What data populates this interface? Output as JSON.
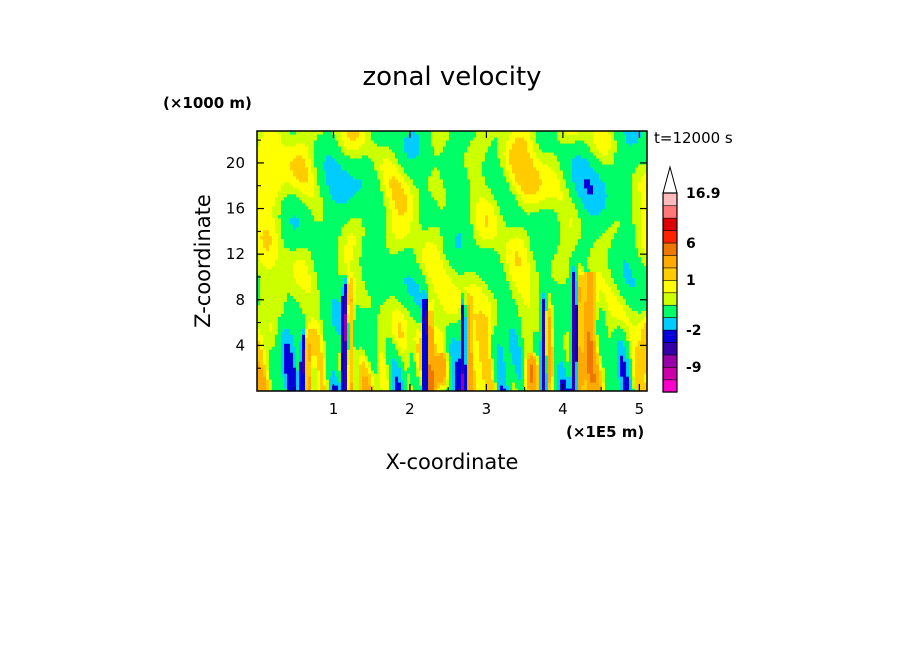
{
  "chart_data": {
    "type": "heatmap",
    "title": "zonal velocity",
    "xlabel": "X-coordinate",
    "ylabel": "Z-coordinate",
    "x_unit_label": "(×1E5 m)",
    "y_unit_label": "(×1000 m)",
    "time_label": "t=12000 s",
    "xlim": [
      0,
      5.1
    ],
    "ylim": [
      0,
      22.8
    ],
    "x_ticks": [
      1,
      2,
      3,
      4,
      5
    ],
    "y_ticks": [
      4,
      8,
      12,
      16,
      20
    ],
    "colorbar": {
      "min": -14,
      "max": 16.9,
      "extend": "max",
      "labels": [
        {
          "value": 16.9,
          "text": "16.9"
        },
        {
          "value": 6,
          "text": "6"
        },
        {
          "value": 1,
          "text": "1"
        },
        {
          "value": -2,
          "text": "-2"
        },
        {
          "value": -9,
          "text": "-9"
        }
      ],
      "levels": [
        {
          "lo": -14,
          "hi": -11.5,
          "color": "#ff00cc"
        },
        {
          "lo": -11.5,
          "hi": -9,
          "color": "#cc00aa"
        },
        {
          "lo": -9,
          "hi": -6.5,
          "color": "#9900aa"
        },
        {
          "lo": -6.5,
          "hi": -4,
          "color": "#3300aa"
        },
        {
          "lo": -4,
          "hi": -2,
          "color": "#0000dd"
        },
        {
          "lo": -2,
          "hi": -1,
          "color": "#00ccff"
        },
        {
          "lo": -1,
          "hi": 0,
          "color": "#00ff66"
        },
        {
          "lo": 0,
          "hi": 0.5,
          "color": "#ccff00"
        },
        {
          "lo": 0.5,
          "hi": 1,
          "color": "#ffff00"
        },
        {
          "lo": 1,
          "hi": 2,
          "color": "#ffcc00"
        },
        {
          "lo": 2,
          "hi": 4,
          "color": "#ffaa00"
        },
        {
          "lo": 4,
          "hi": 6,
          "color": "#ee7700"
        },
        {
          "lo": 6,
          "hi": 9,
          "color": "#ff2200"
        },
        {
          "lo": 9,
          "hi": 11.5,
          "color": "#dd0000"
        },
        {
          "lo": 11.5,
          "hi": 14,
          "color": "#ff7777"
        },
        {
          "lo": 14,
          "hi": 16.9,
          "color": "#ffbbbb"
        }
      ]
    },
    "features": [
      {
        "x": 0.6,
        "z_top": 5.5,
        "kind": "negative jet",
        "min_value": -5
      },
      {
        "x": 1.15,
        "z_top": 10,
        "kind": "negative jet",
        "min_value": -6
      },
      {
        "x": 2.2,
        "z_top": 8.5,
        "kind": "negative jet",
        "min_value": -7
      },
      {
        "x": 2.7,
        "z_top": 8.5,
        "kind": "negative jet",
        "min_value": -6
      },
      {
        "x": 3.75,
        "z_top": 8.5,
        "kind": "negative jet",
        "min_value": -5
      },
      {
        "x": 4.15,
        "z_top": 11,
        "kind": "negative jet",
        "min_value": -6
      },
      {
        "x": 4.35,
        "z_top": 10,
        "kind": "positive core",
        "max_value": 5
      },
      {
        "x": 2.4,
        "z_top": 3,
        "kind": "positive core",
        "max_value": 4
      },
      {
        "x": 3.6,
        "z_top": 3,
        "kind": "positive core",
        "max_value": 4
      }
    ]
  }
}
